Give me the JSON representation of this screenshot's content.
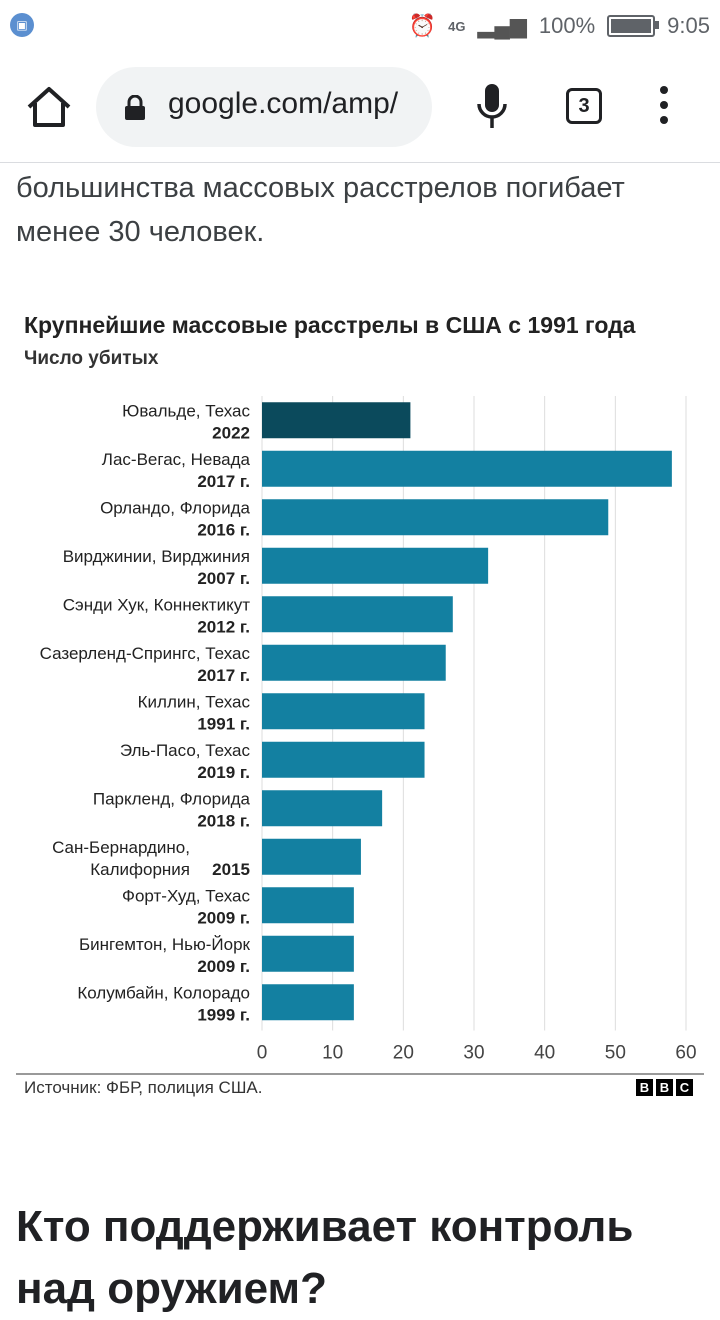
{
  "status_bar": {
    "network": "4G",
    "battery": "100%",
    "battery_level": 1.0,
    "time": "9:05"
  },
  "browser": {
    "url": "google.com/amp/",
    "tab_count": "3"
  },
  "article": {
    "text_top": "большинства массовых расстрелов погибает менее 30 человек.",
    "heading": "Кто поддерживает контроль над оружием?"
  },
  "chart_data": {
    "type": "bar",
    "orientation": "horizontal",
    "title": "Крупнейшие массовые расстрелы в США с 1991 года",
    "subtitle": "Число убитых",
    "categories": [
      {
        "place": "Ювальде, Техас",
        "year": "2022"
      },
      {
        "place": "Лас-Вегас, Невада",
        "year": "2017 г."
      },
      {
        "place": "Орландо, Флорида",
        "year": "2016 г."
      },
      {
        "place": "Вирджинии, Вирджиния",
        "year": "2007 г."
      },
      {
        "place": "Сэнди Хук, Коннектикут",
        "year": "2012 г."
      },
      {
        "place": "Сазерленд-Спрингс, Техас",
        "year": "2017 г."
      },
      {
        "place": "Киллин, Техас",
        "year": "1991 г."
      },
      {
        "place": "Эль-Пасо, Техас",
        "year": "2019 г."
      },
      {
        "place": "Паркленд, Флорида",
        "year": "2018 г."
      },
      {
        "place": "Сан-Бернардино, Калифорния",
        "year": "2015"
      },
      {
        "place": "Форт-Худ, Техас",
        "year": "2009 г."
      },
      {
        "place": "Бингемтон, Нью-Йорк",
        "year": "2009 г."
      },
      {
        "place": "Колумбайн, Колорадо",
        "year": "1999 г."
      }
    ],
    "values": [
      21,
      58,
      49,
      32,
      27,
      26,
      23,
      23,
      17,
      14,
      13,
      13,
      13
    ],
    "xlim": [
      0,
      60
    ],
    "ticks": [
      0,
      10,
      20,
      30,
      40,
      50,
      60
    ],
    "grid": true,
    "colors": {
      "highlight": "#0b4a5c",
      "bar": "#1380a1",
      "grid": "#dddddd"
    }
  },
  "footer": {
    "source": "Источник: ФБР, полиция США.",
    "logo": [
      "B",
      "B",
      "C"
    ]
  }
}
